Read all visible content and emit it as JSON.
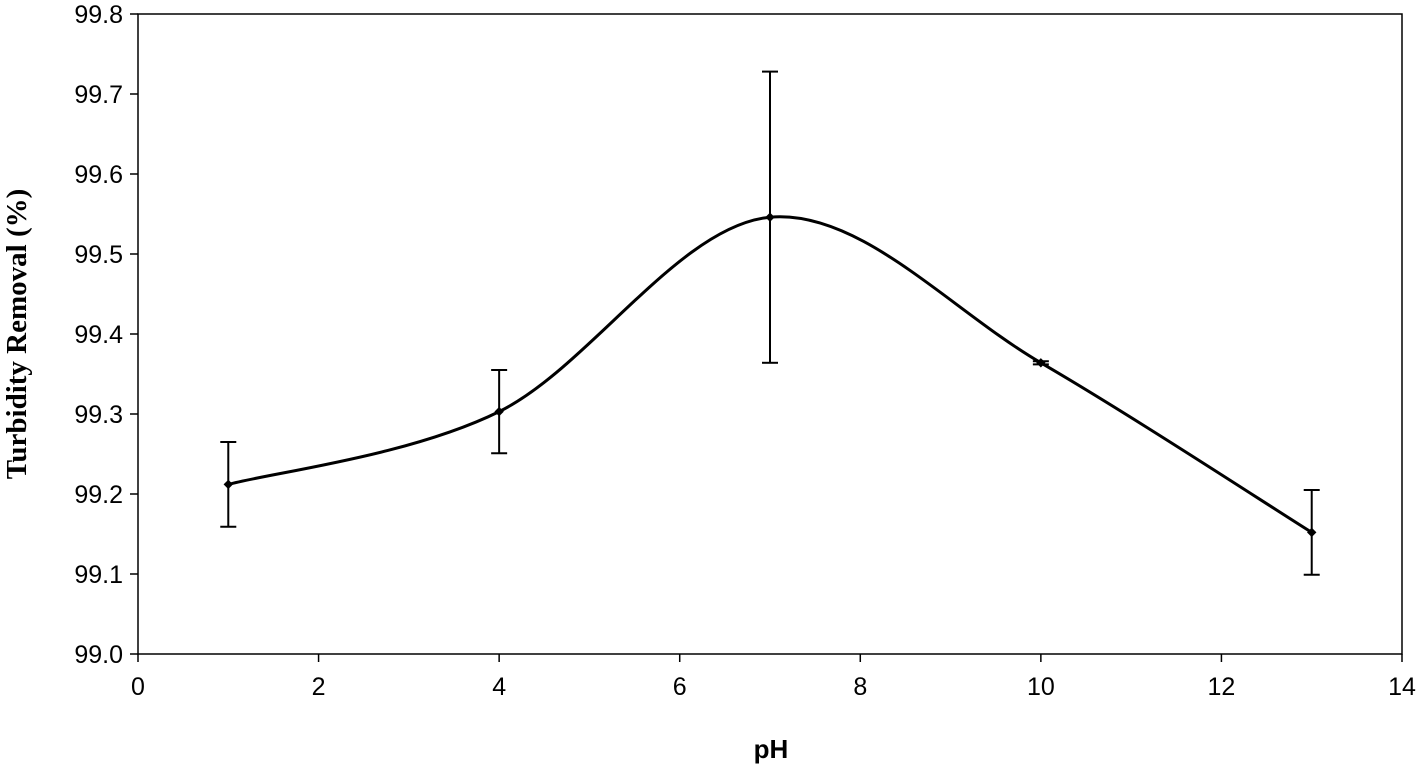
{
  "chart_data": {
    "type": "line",
    "title": "",
    "xlabel": "pH",
    "ylabel": "Turbidity Removal (%)",
    "xlim": [
      0,
      14
    ],
    "ylim": [
      99.0,
      99.8
    ],
    "x_ticks": [
      "0",
      "2",
      "4",
      "6",
      "8",
      "10",
      "12",
      "14"
    ],
    "y_ticks": [
      "99.0",
      "99.1",
      "99.2",
      "99.3",
      "99.4",
      "99.5",
      "99.6",
      "99.7",
      "99.8"
    ],
    "smoothed": true,
    "grid": false,
    "legend": "none",
    "line_color": "#000000",
    "series": [
      {
        "x": [
          1,
          4,
          7,
          10,
          13
        ],
        "y": [
          99.212,
          99.303,
          99.546,
          99.364,
          99.152
        ],
        "error": [
          0.053,
          0.052,
          0.182,
          0.002,
          0.053
        ]
      }
    ]
  }
}
